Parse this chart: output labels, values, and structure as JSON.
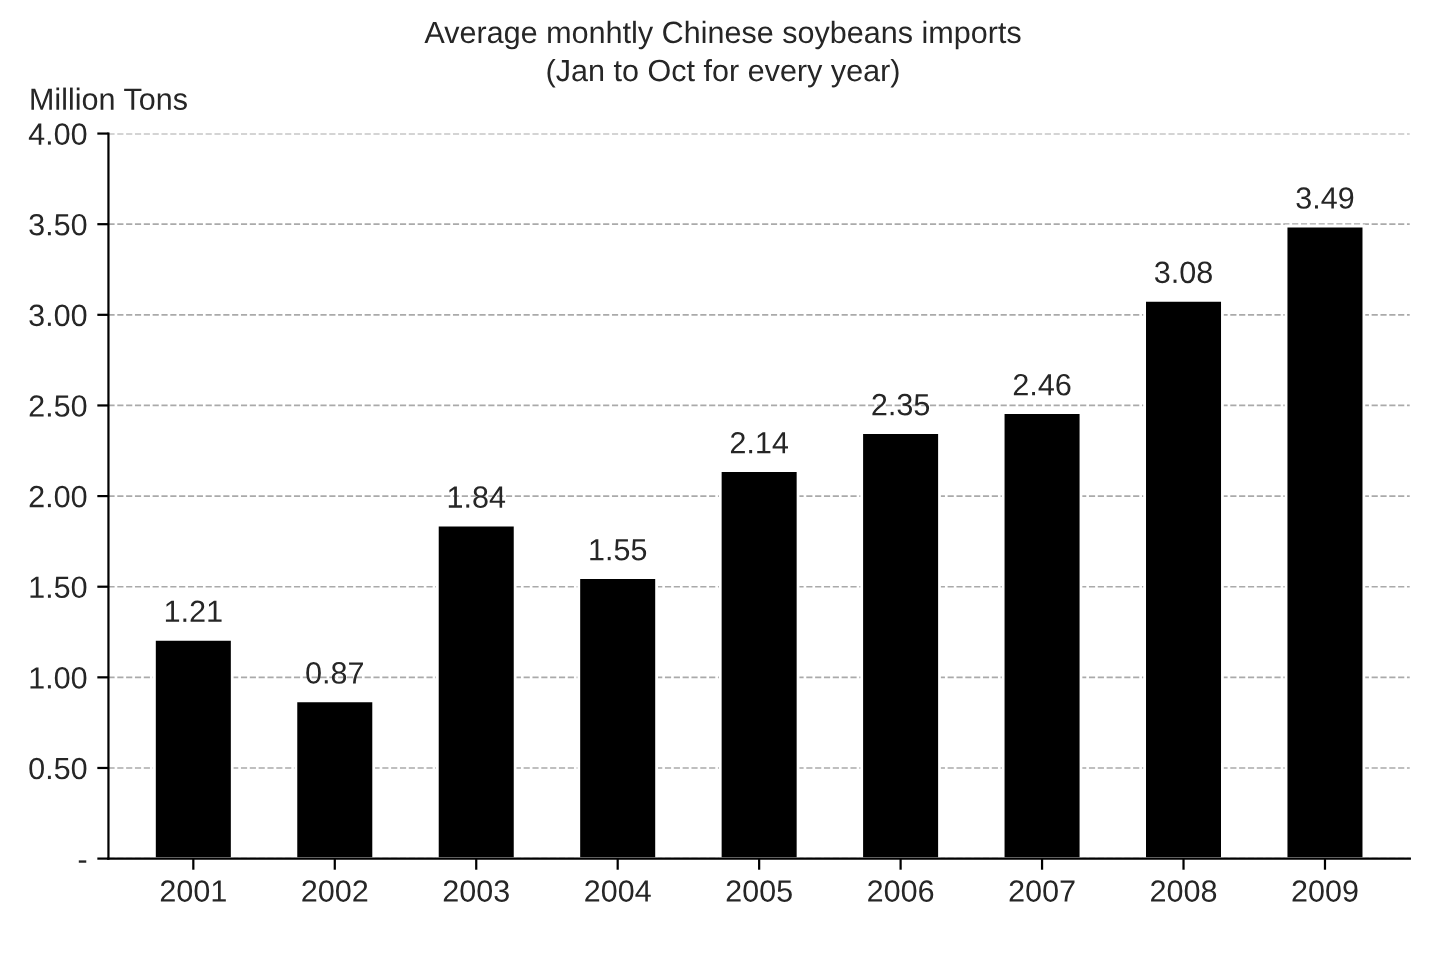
{
  "chart_data": {
    "type": "bar",
    "title": "Average monhtly Chinese soybeans imports",
    "subtitle": "(Jan to Oct for every year)",
    "ylabel": "Million Tons",
    "categories": [
      "2001",
      "2002",
      "2003",
      "2004",
      "2005",
      "2006",
      "2007",
      "2008",
      "2009"
    ],
    "values": [
      1.21,
      0.87,
      1.84,
      1.55,
      2.14,
      2.35,
      2.46,
      3.08,
      3.49
    ],
    "color": "#000000",
    "ylim": [
      0,
      4
    ],
    "yticks": [
      {
        "value": 0,
        "label": "-"
      },
      {
        "value": 0.5,
        "label": "0.50"
      },
      {
        "value": 1,
        "label": "1.00"
      },
      {
        "value": 1.5,
        "label": "1.50"
      },
      {
        "value": 2,
        "label": "2.00"
      },
      {
        "value": 2.5,
        "label": "2.50"
      },
      {
        "value": 3,
        "label": "3.00"
      },
      {
        "value": 3.5,
        "label": "3.50"
      },
      {
        "value": 4,
        "label": "4.00"
      }
    ],
    "grid": "y",
    "line_style": "dashed",
    "data_labels": true
  }
}
